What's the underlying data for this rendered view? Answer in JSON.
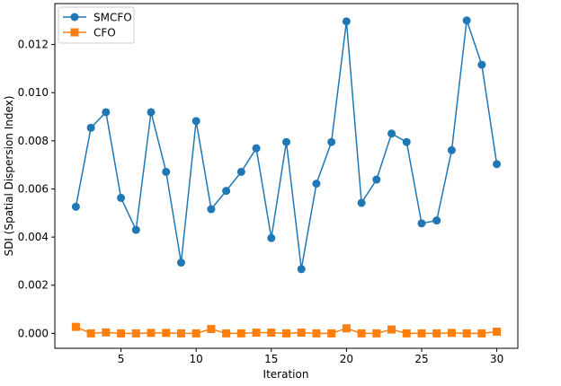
{
  "chart_data": {
    "type": "line",
    "title": "",
    "xlabel": "Iteration",
    "ylabel": "SDI (Spatial Dispersion Index)",
    "xlim": [
      0.6,
      31.4
    ],
    "ylim": [
      -0.00062,
      0.0137
    ],
    "xticks": [
      5,
      10,
      15,
      20,
      25,
      30
    ],
    "yticks": [
      0.0,
      0.002,
      0.004,
      0.006,
      0.008,
      0.01,
      0.012
    ],
    "ytick_labels": [
      "0.000",
      "0.002",
      "0.004",
      "0.006",
      "0.008",
      "0.010",
      "0.012"
    ],
    "grid": false,
    "legend_position": "top-left",
    "x": [
      2,
      3,
      4,
      5,
      6,
      7,
      8,
      9,
      10,
      11,
      12,
      13,
      14,
      15,
      16,
      17,
      18,
      19,
      20,
      21,
      22,
      23,
      24,
      25,
      26,
      27,
      28,
      29,
      30
    ],
    "series": [
      {
        "name": "SMCFO",
        "color": "#1f77b4",
        "marker": "circle",
        "values": [
          0.00526,
          0.00854,
          0.00919,
          0.00563,
          0.0043,
          0.00919,
          0.00671,
          0.00294,
          0.00882,
          0.00516,
          0.00592,
          0.00671,
          0.00769,
          0.00396,
          0.00795,
          0.00267,
          0.00622,
          0.00795,
          0.01296,
          0.00542,
          0.00639,
          0.0083,
          0.00795,
          0.00457,
          0.00469,
          0.00761,
          0.013,
          0.01116,
          0.00703
        ]
      },
      {
        "name": "CFO",
        "color": "#ff7f0e",
        "marker": "square",
        "values": [
          0.00027,
          0.0,
          4e-05,
          0.0,
          0.0,
          2e-05,
          2e-05,
          0.0,
          0.0,
          0.00018,
          0.0,
          0.0,
          3e-05,
          3e-05,
          0.0,
          3e-05,
          0.0,
          0.0,
          0.00021,
          0.0,
          0.0,
          0.00016,
          0.0,
          0.0,
          0.0,
          2e-05,
          0.0,
          0.0,
          7e-05
        ]
      }
    ]
  }
}
